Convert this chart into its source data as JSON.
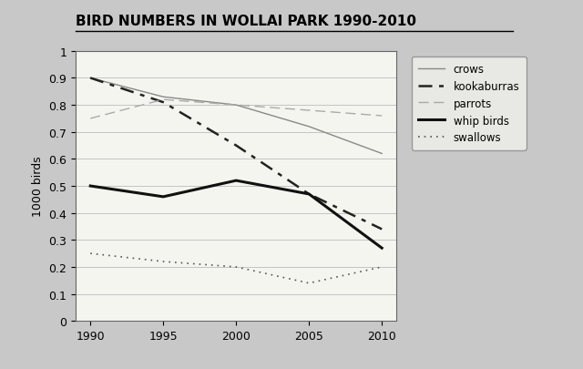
{
  "title": "BIRD NUMBERS IN WOLLAI PARK 1990-2010",
  "ylabel": "1000 birds",
  "years": [
    1990,
    1995,
    2000,
    2005,
    2010
  ],
  "series": {
    "crows": [
      0.9,
      0.83,
      0.8,
      0.72,
      0.62
    ],
    "kookaburras": [
      0.9,
      0.81,
      0.65,
      0.47,
      0.34
    ],
    "parrots": [
      0.75,
      0.82,
      0.8,
      0.78,
      0.76
    ],
    "whip_birds": [
      0.5,
      0.46,
      0.52,
      0.47,
      0.27
    ],
    "swallows": [
      0.25,
      0.22,
      0.2,
      0.14,
      0.2
    ]
  },
  "ylim": [
    0,
    1.0
  ],
  "yticks": [
    0,
    0.1,
    0.2,
    0.3,
    0.4,
    0.5,
    0.6,
    0.7,
    0.8,
    0.9,
    1
  ],
  "line_styles": {
    "crows": {
      "color": "#888888",
      "linestyle": "-",
      "linewidth": 1.0,
      "dashes": []
    },
    "kookaburras": {
      "color": "#222222",
      "linestyle": "--",
      "linewidth": 1.8,
      "dashes": [
        6,
        3,
        2,
        3
      ]
    },
    "parrots": {
      "color": "#aaaaaa",
      "linestyle": "--",
      "linewidth": 1.0,
      "dashes": [
        8,
        4
      ]
    },
    "whip_birds": {
      "color": "#111111",
      "linestyle": "-",
      "linewidth": 2.2,
      "dashes": []
    },
    "swallows": {
      "color": "#555555",
      "linestyle": ":",
      "linewidth": 1.2,
      "dashes": [
        1,
        3
      ]
    }
  },
  "legend_labels": [
    "crows",
    "kookaburras",
    "parrots",
    "whip birds",
    "swallows"
  ],
  "legend_keys": [
    "crows",
    "kookaburras",
    "parrots",
    "whip_birds",
    "swallows"
  ],
  "background_color": "#c8c8c8",
  "plot_background": "#f5f5f0",
  "title_fontsize": 11,
  "axis_fontsize": 9,
  "legend_fontsize": 8.5
}
